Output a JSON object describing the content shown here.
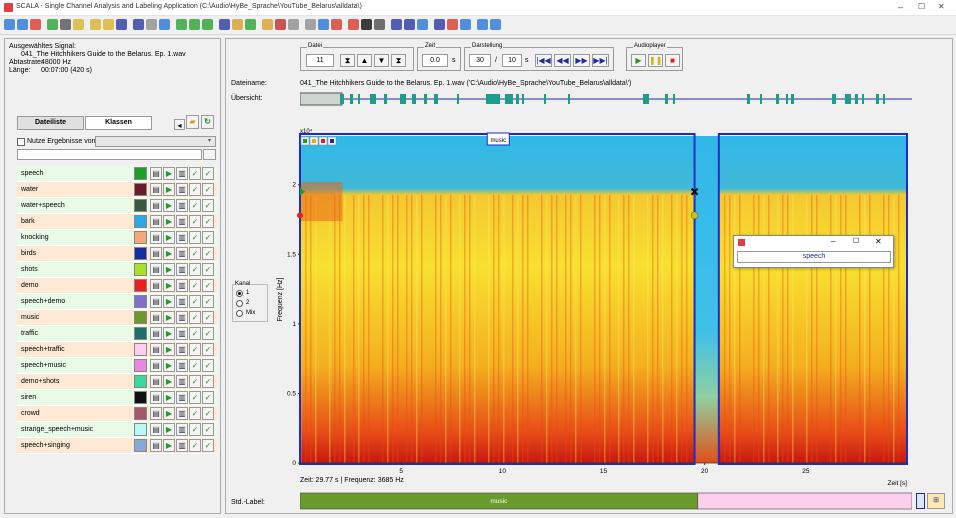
{
  "window": {
    "title": "SCALA - Single Channel Analysis and Labeling Application  (C:\\Audio\\HyBe_Sprache\\YouTube_Belarus\\alldata\\)",
    "minimize": "–",
    "maximize": "☐",
    "close": "✕"
  },
  "info": {
    "heading": "Ausgewähltes Signal:",
    "file": "041_The Hitchhikers Guide to the Belarus. Ep. 1.wav",
    "rate_label": "Abtastrate:",
    "rate_value": "48000 Hz",
    "length_label": "Länge:",
    "length_value": "00:07:00  (420 s)"
  },
  "tabs": {
    "files": "Dateiliste",
    "classes": "Klassen"
  },
  "use_results": {
    "label": "Nutze Ergebnisse von:",
    "value": ""
  },
  "classes": [
    {
      "name": "speech",
      "color": "#1e9e28",
      "bg": "#e9fbe6"
    },
    {
      "name": "water",
      "color": "#6a1c2c",
      "bg": "#fde9d4"
    },
    {
      "name": "water+speech",
      "color": "#3a5a3e",
      "bg": "#e9fbe6"
    },
    {
      "name": "bark",
      "color": "#2aa8e8",
      "bg": "#fde9d4"
    },
    {
      "name": "knocking",
      "color": "#f4a87a",
      "bg": "#e9fbe6"
    },
    {
      "name": "birds",
      "color": "#142ea0",
      "bg": "#fde9d4"
    },
    {
      "name": "shots",
      "color": "#a8e028",
      "bg": "#e9fbe6"
    },
    {
      "name": "demo",
      "color": "#e82020",
      "bg": "#fde9d4"
    },
    {
      "name": "speech+demo",
      "color": "#7e70c8",
      "bg": "#e9fbe6"
    },
    {
      "name": "music",
      "color": "#6a9a2c",
      "bg": "#fde9d4"
    },
    {
      "name": "traffic",
      "color": "#1e6e6a",
      "bg": "#e9fbe6"
    },
    {
      "name": "speech+traffic",
      "color": "#fccfee",
      "bg": "#fde9d4"
    },
    {
      "name": "speech+music",
      "color": "#e888e0",
      "bg": "#e9fbe6"
    },
    {
      "name": "demo+shots",
      "color": "#38d8a0",
      "bg": "#fde9d4"
    },
    {
      "name": "siren",
      "color": "#101010",
      "bg": "#e9fbe6"
    },
    {
      "name": "crowd",
      "color": "#a05a68",
      "bg": "#fde9d4"
    },
    {
      "name": "strange_speech+music",
      "color": "#b8f8f8",
      "bg": "#e9fbe6"
    },
    {
      "name": "speech+singing",
      "color": "#88a8d8",
      "bg": "#fde9d4"
    }
  ],
  "controls": {
    "datei_label": "Datei",
    "datei_value": "11",
    "zeit_label": "Zeit",
    "zeit_value": "0.0",
    "zeit_unit": "s",
    "darst_label": "Darstellung",
    "darst_value1": "30",
    "darst_sep": "/",
    "darst_value2": "10",
    "darst_unit": "s",
    "audio_label": "Audioplayer"
  },
  "dateiname": {
    "label": "Dateiname:",
    "value": "041_The Hitchhikers Guide to the Belarus. Ep. 1.wav  ('C:\\Audio\\HyBe_Sprache\\YouTube_Belarus\\alldata\\')"
  },
  "overview": {
    "label": "Übersicht:"
  },
  "kanal": {
    "label": "Kanal",
    "opts": [
      "1",
      "2",
      "Mix"
    ],
    "selected": 0
  },
  "spectrogram": {
    "ylabel": "Frequenz [Hz]",
    "exp": "x10⁴",
    "yticks": [
      {
        "v": 0,
        "l": "0"
      },
      {
        "v": 0.5,
        "l": "0.5"
      },
      {
        "v": 1,
        "l": "1"
      },
      {
        "v": 1.5,
        "l": "1.5"
      },
      {
        "v": 2,
        "l": "2"
      }
    ],
    "xticks": [
      {
        "v": 5,
        "l": "5"
      },
      {
        "v": 10,
        "l": "10"
      },
      {
        "v": 15,
        "l": "15"
      },
      {
        "v": 20,
        "l": "20"
      },
      {
        "v": 25,
        "l": "25"
      }
    ],
    "xlabel": "Zeit [s]",
    "status": "Zeit: 29.77 s  |  Frequenz: 3685 Hz",
    "segments": [
      {
        "start": 0,
        "end": 19.5,
        "label": "music"
      },
      {
        "start": 20.7,
        "end": 30,
        "label": ""
      }
    ]
  },
  "popup": {
    "text": "speech"
  },
  "stdlabel": {
    "label": "Std.-Label:",
    "segments": [
      {
        "start": 0,
        "end": 19.5,
        "label": "music",
        "color": "#6a9a2c"
      },
      {
        "start": 19.5,
        "end": 30,
        "label": "",
        "color": "#fccfee"
      }
    ]
  }
}
